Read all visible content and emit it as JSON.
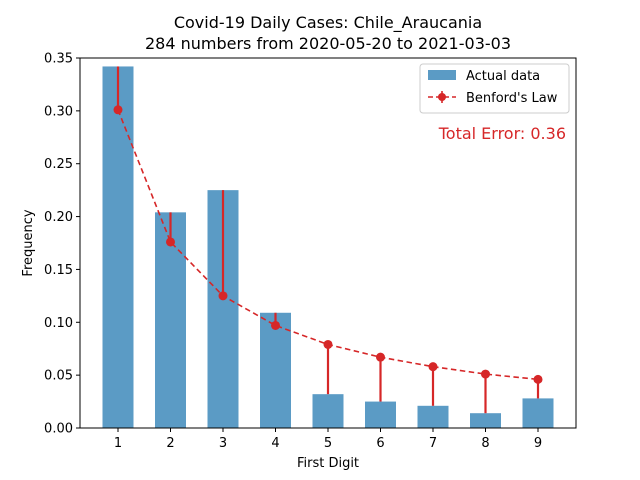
{
  "chart_data": {
    "type": "bar",
    "title": "Covid-19 Daily Cases: Chile_Araucania",
    "subtitle": "284 numbers from 2020-05-20 to 2021-03-03",
    "xlabel": "First Digit",
    "ylabel": "Frequency",
    "categories": [
      "1",
      "2",
      "3",
      "4",
      "5",
      "6",
      "7",
      "8",
      "9"
    ],
    "ylim": [
      0,
      0.35
    ],
    "yticks": [
      "0.00",
      "0.05",
      "0.10",
      "0.15",
      "0.20",
      "0.25",
      "0.30",
      "0.35"
    ],
    "series": [
      {
        "name": "Actual data",
        "kind": "bar",
        "color": "#5b9bc5",
        "values": [
          0.342,
          0.204,
          0.225,
          0.109,
          0.032,
          0.025,
          0.021,
          0.014,
          0.028
        ]
      },
      {
        "name": "Benford's Law",
        "kind": "line-errorbar",
        "color": "#d62728",
        "values": [
          0.301,
          0.176,
          0.125,
          0.097,
          0.079,
          0.067,
          0.058,
          0.051,
          0.046
        ]
      }
    ],
    "annotation": "Total Error: 0.36",
    "annotation_color": "#d62728",
    "legend_position": "top-right",
    "grid": false
  }
}
